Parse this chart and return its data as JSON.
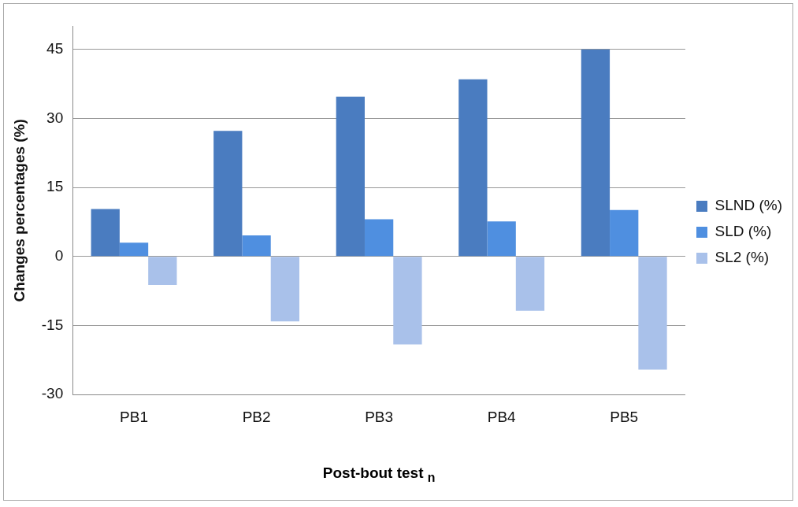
{
  "chart_data": {
    "type": "bar",
    "xlabel": "Post-bout test $_{n}$",
    "ylabel": "Changes percentages (%)",
    "categories": [
      "PB1",
      "PB2",
      "PB3",
      "PB4",
      "PB5"
    ],
    "series": [
      {
        "name": "SLND (%)",
        "color": "#4a7cc0",
        "values": [
          10.3,
          27.3,
          34.7,
          38.5,
          45
        ]
      },
      {
        "name": "SLD (%)",
        "color": "#4f8fe0",
        "values": [
          3.0,
          4.6,
          8.1,
          7.6,
          10.1
        ]
      },
      {
        "name": "SL2 (%)",
        "color": "#a9c1ea",
        "values": [
          -6.2,
          -14.1,
          -19.1,
          -11.8,
          -24.6
        ]
      }
    ],
    "ylim": [
      -30,
      50
    ],
    "yticks": [
      -30,
      -15,
      0,
      15,
      30,
      45
    ],
    "grid": "y",
    "legend": "right"
  }
}
